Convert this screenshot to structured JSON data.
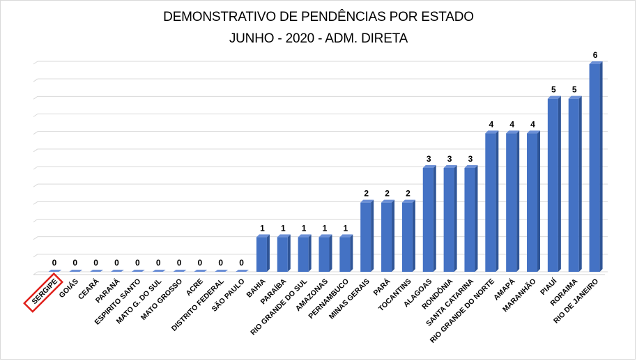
{
  "chart_data": {
    "type": "bar",
    "title": "DEMONSTRATIVO DE PENDÊNCIAS POR ESTADO",
    "subtitle": "JUNHO - 2020 - ADM. DIRETA",
    "categories": [
      "SERGIPE",
      "GOIÁS",
      "CEARÁ",
      "PARANÁ",
      "ESPIRITO SANTO",
      "MATO G. DO SUL",
      "MATO GROSSO",
      "ACRE",
      "DISTRITO FEDERAL",
      "SÃO PAULO",
      "BAHIA",
      "PARAÍBA",
      "RIO GRANDE DO SUL",
      "AMAZONAS",
      "PERNAMBUCO",
      "MINAS GERAIS",
      "PARÁ",
      "TOCANTINS",
      "ALAGOAS",
      "RONDÔNIA",
      "SANTA CATARINA",
      "RIO GRANDE DO NORTE",
      "AMAPÁ",
      "MARANHÃO",
      "PIAUÍ",
      "RORAIMA",
      "RIO DE JANEIRO"
    ],
    "values": [
      0,
      0,
      0,
      0,
      0,
      0,
      0,
      0,
      0,
      0,
      1,
      1,
      1,
      1,
      1,
      2,
      2,
      2,
      3,
      3,
      3,
      4,
      4,
      4,
      5,
      5,
      6
    ],
    "ylim": [
      0,
      6
    ],
    "grid": true,
    "data_labels": true,
    "highlighted_category": "SERGIPE",
    "bar_color": "#4472C4",
    "highlight_box_color": "#E0201B"
  }
}
